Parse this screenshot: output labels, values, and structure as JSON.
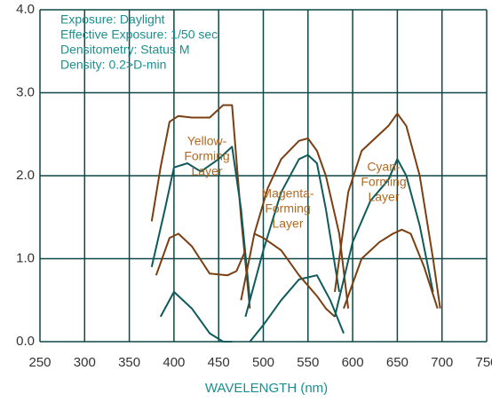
{
  "chart_data": {
    "type": "line",
    "notes": [
      "Exposure: Daylight",
      "Effective Exposure: 1/50 sec",
      "Densitometry: Status M",
      "Density: 0.2>D-min"
    ],
    "annotations": [
      [
        "Yellow-",
        "Forming",
        "Layer"
      ],
      [
        "Magenta-",
        "Forming",
        "Layer"
      ],
      [
        "Cyan-",
        "Forming",
        "Layer"
      ]
    ],
    "x_label": "WAVELENGTH (nm)",
    "xlim": [
      250,
      750
    ],
    "xticks": [
      250,
      300,
      350,
      400,
      450,
      500,
      550,
      600,
      650,
      700,
      750
    ],
    "ylim": [
      0,
      4
    ],
    "yticks": [
      {
        "value": 0,
        "label": "0.0"
      },
      {
        "value": 1,
        "label": "1.0"
      },
      {
        "value": 2,
        "label": "2.0"
      },
      {
        "value": 3,
        "label": "3.0"
      },
      {
        "value": 4,
        "label": "4.0"
      }
    ],
    "grid": true,
    "series": [
      {
        "color": "#7a3f12",
        "x": [
          375,
          385,
          395,
          405,
          420,
          440,
          455,
          465,
          475,
          485
        ],
        "values": [
          1.45,
          2.1,
          2.65,
          2.72,
          2.7,
          2.7,
          2.85,
          2.85,
          1.5,
          0.4
        ]
      },
      {
        "color": "#0f5a5a",
        "x": [
          375,
          390,
          400,
          415,
          430,
          450,
          465,
          475,
          485
        ],
        "values": [
          0.9,
          1.6,
          2.1,
          2.15,
          2.05,
          2.2,
          2.35,
          1.6,
          0.5
        ]
      },
      {
        "color": "#7a3f12",
        "x": [
          380,
          395,
          405,
          420,
          440,
          460,
          470,
          480
        ],
        "values": [
          0.8,
          1.25,
          1.3,
          1.15,
          0.82,
          0.8,
          0.85,
          1.1
        ]
      },
      {
        "color": "#0f5a5a",
        "x": [
          385,
          400,
          420,
          440,
          455,
          465
        ],
        "values": [
          0.3,
          0.6,
          0.4,
          0.1,
          0,
          0
        ]
      },
      {
        "color": "#7a3f12",
        "x": [
          475,
          490,
          505,
          520,
          540,
          550,
          560,
          570,
          585,
          595
        ],
        "values": [
          0.5,
          1.3,
          1.85,
          2.2,
          2.42,
          2.45,
          2.3,
          2.0,
          1.3,
          0.4
        ]
      },
      {
        "color": "#0f5a5a",
        "x": [
          480,
          500,
          520,
          540,
          550,
          560,
          570,
          585
        ],
        "values": [
          0.3,
          1.1,
          1.8,
          2.2,
          2.25,
          2.15,
          1.6,
          0.6
        ]
      },
      {
        "color": "#0f5a5a",
        "x": [
          485,
          500,
          520,
          540,
          560,
          575,
          590
        ],
        "values": [
          0,
          0.2,
          0.5,
          0.75,
          0.8,
          0.5,
          0.1
        ]
      },
      {
        "color": "#7a3f12",
        "x": [
          490,
          500,
          520,
          540,
          560,
          570,
          580
        ],
        "values": [
          1.3,
          1.25,
          1.1,
          0.8,
          0.55,
          0.4,
          0.3
        ]
      },
      {
        "color": "#7a3f12",
        "x": [
          580,
          595,
          610,
          625,
          640,
          650,
          660,
          675,
          690,
          698
        ],
        "values": [
          0.6,
          1.8,
          2.3,
          2.45,
          2.6,
          2.75,
          2.6,
          2.0,
          1.0,
          0.4
        ]
      },
      {
        "color": "#0f5a5a",
        "x": [
          580,
          600,
          620,
          640,
          650,
          660,
          675,
          690
        ],
        "values": [
          0.3,
          1.2,
          1.7,
          1.95,
          2.2,
          2.0,
          1.4,
          0.6
        ]
      },
      {
        "color": "#7a3f12",
        "x": [
          590,
          610,
          630,
          645,
          655,
          665,
          680,
          695
        ],
        "values": [
          0.4,
          1.0,
          1.2,
          1.3,
          1.35,
          1.3,
          0.9,
          0.4
        ]
      }
    ]
  }
}
